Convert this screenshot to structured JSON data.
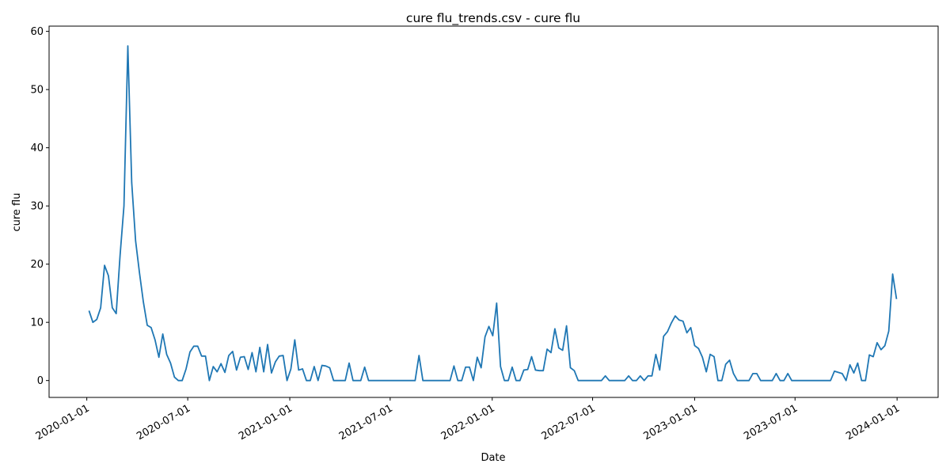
{
  "chart_data": {
    "type": "line",
    "title": "cure flu_trends.csv - cure flu",
    "x_label": "Date",
    "y_label": "cure flu",
    "color": "#1f77b4",
    "grid": false,
    "x": [
      "2020-01-05",
      "2020-01-12",
      "2020-01-19",
      "2020-01-26",
      "2020-02-02",
      "2020-02-09",
      "2020-02-16",
      "2020-02-23",
      "2020-03-01",
      "2020-03-08",
      "2020-03-15",
      "2020-03-22",
      "2020-03-29",
      "2020-04-05",
      "2020-04-12",
      "2020-04-19",
      "2020-04-26",
      "2020-05-03",
      "2020-05-10",
      "2020-05-17",
      "2020-05-24",
      "2020-05-31",
      "2020-06-07",
      "2020-06-14",
      "2020-06-21",
      "2020-06-28",
      "2020-07-05",
      "2020-07-12",
      "2020-07-19",
      "2020-07-26",
      "2020-08-02",
      "2020-08-09",
      "2020-08-16",
      "2020-08-23",
      "2020-08-30",
      "2020-09-06",
      "2020-09-13",
      "2020-09-20",
      "2020-09-27",
      "2020-10-04",
      "2020-10-11",
      "2020-10-18",
      "2020-10-25",
      "2020-11-01",
      "2020-11-08",
      "2020-11-15",
      "2020-11-22",
      "2020-11-29",
      "2020-12-06",
      "2020-12-13",
      "2020-12-20",
      "2020-12-27",
      "2021-01-03",
      "2021-01-10",
      "2021-01-17",
      "2021-01-24",
      "2021-01-31",
      "2021-02-07",
      "2021-02-14",
      "2021-02-21",
      "2021-02-28",
      "2021-03-07",
      "2021-03-14",
      "2021-03-21",
      "2021-03-28",
      "2021-04-04",
      "2021-04-11",
      "2021-04-18",
      "2021-04-25",
      "2021-05-02",
      "2021-05-09",
      "2021-05-16",
      "2021-05-23",
      "2021-05-30",
      "2021-06-06",
      "2021-06-13",
      "2021-06-20",
      "2021-06-27",
      "2021-07-04",
      "2021-07-11",
      "2021-07-18",
      "2021-07-25",
      "2021-08-01",
      "2021-08-08",
      "2021-08-15",
      "2021-08-22",
      "2021-08-29",
      "2021-09-05",
      "2021-09-12",
      "2021-09-19",
      "2021-09-26",
      "2021-10-03",
      "2021-10-10",
      "2021-10-17",
      "2021-10-24",
      "2021-10-31",
      "2021-11-07",
      "2021-11-14",
      "2021-11-21",
      "2021-11-28",
      "2021-12-05",
      "2021-12-12",
      "2021-12-19",
      "2021-12-26",
      "2022-01-02",
      "2022-01-09",
      "2022-01-16",
      "2022-01-23",
      "2022-01-30",
      "2022-02-06",
      "2022-02-13",
      "2022-02-20",
      "2022-02-27",
      "2022-03-06",
      "2022-03-13",
      "2022-03-20",
      "2022-03-27",
      "2022-04-03",
      "2022-04-10",
      "2022-04-17",
      "2022-04-24",
      "2022-05-01",
      "2022-05-08",
      "2022-05-15",
      "2022-05-22",
      "2022-05-29",
      "2022-06-05",
      "2022-06-12",
      "2022-06-19",
      "2022-06-26",
      "2022-07-03",
      "2022-07-10",
      "2022-07-17",
      "2022-07-24",
      "2022-07-31",
      "2022-08-07",
      "2022-08-14",
      "2022-08-21",
      "2022-08-28",
      "2022-09-04",
      "2022-09-11",
      "2022-09-18",
      "2022-09-25",
      "2022-10-02",
      "2022-10-09",
      "2022-10-16",
      "2022-10-23",
      "2022-10-30",
      "2022-11-06",
      "2022-11-13",
      "2022-11-20",
      "2022-11-27",
      "2022-12-04",
      "2022-12-11",
      "2022-12-18",
      "2022-12-25",
      "2023-01-01",
      "2023-01-08",
      "2023-01-15",
      "2023-01-22",
      "2023-01-29",
      "2023-02-05",
      "2023-02-12",
      "2023-02-19",
      "2023-02-26",
      "2023-03-05",
      "2023-03-12",
      "2023-03-19",
      "2023-03-26",
      "2023-04-02",
      "2023-04-09",
      "2023-04-16",
      "2023-04-23",
      "2023-04-30",
      "2023-05-07",
      "2023-05-14",
      "2023-05-21",
      "2023-05-28",
      "2023-06-04",
      "2023-06-11",
      "2023-06-18",
      "2023-06-25",
      "2023-07-02",
      "2023-07-09",
      "2023-07-16",
      "2023-07-23",
      "2023-07-30",
      "2023-08-06",
      "2023-08-13",
      "2023-08-20",
      "2023-08-27",
      "2023-09-03",
      "2023-09-10",
      "2023-09-17",
      "2023-09-24",
      "2023-10-01",
      "2023-10-08",
      "2023-10-15",
      "2023-10-22",
      "2023-10-29",
      "2023-11-05",
      "2023-11-12",
      "2023-11-19",
      "2023-11-26",
      "2023-12-03",
      "2023-12-10",
      "2023-12-17",
      "2023-12-24",
      "2023-12-31"
    ],
    "values": [
      12,
      10,
      10.5,
      12.5,
      19.8,
      18,
      12.5,
      11.5,
      21.5,
      30,
      57.5,
      34,
      24,
      18.5,
      13.5,
      9.5,
      9.1,
      7,
      4,
      8,
      4.5,
      3,
      0.6,
      0,
      0,
      2,
      4.9,
      5.9,
      5.9,
      4.2,
      4.2,
      0,
      2.4,
      1.5,
      2.9,
      1.4,
      4.3,
      5,
      1.8,
      4,
      4.1,
      1.9,
      4.8,
      1.5,
      5.7,
      1.5,
      6.2,
      1.3,
      3.2,
      4.2,
      4.3,
      0,
      2,
      7,
      1.8,
      2,
      0,
      0,
      2.4,
      0,
      2.6,
      2.5,
      2.2,
      0,
      0,
      0,
      0,
      3,
      0,
      0,
      0,
      2.3,
      0,
      0,
      0,
      0,
      0,
      0,
      0,
      0,
      0,
      0,
      0,
      0,
      0,
      4.3,
      0,
      0,
      0,
      0,
      0,
      0,
      0,
      0,
      2.5,
      0,
      0,
      2.3,
      2.3,
      0,
      4,
      2.2,
      7.5,
      9.3,
      7.7,
      13.3,
      2.4,
      0,
      0,
      2.3,
      0,
      0,
      1.8,
      1.9,
      4.1,
      1.8,
      1.7,
      1.7,
      5.4,
      4.8,
      8.9,
      5.6,
      5.2,
      9.4,
      2.2,
      1.7,
      0,
      0,
      0,
      0,
      0,
      0,
      0,
      0.8,
      0,
      0,
      0,
      0,
      0,
      0.8,
      0,
      0,
      0.8,
      0,
      0.8,
      0.8,
      4.5,
      1.8,
      7.6,
      8.4,
      9.9,
      11.1,
      10.4,
      10.2,
      8.2,
      9.1,
      6,
      5.5,
      4,
      1.5,
      4.5,
      4.1,
      0,
      0,
      2.8,
      3.5,
      1.2,
      0,
      0,
      0,
      0,
      1.2,
      1.2,
      0,
      0,
      0,
      0,
      1.2,
      0,
      0,
      1.2,
      0,
      0,
      0,
      0,
      0,
      0,
      0,
      0,
      0,
      0,
      0,
      1.6,
      1.4,
      1.2,
      0,
      2.7,
      1.3,
      3,
      0,
      0,
      4.4,
      4.1,
      6.5,
      5.3,
      6,
      8.5,
      18.3,
      14
    ],
    "xlim": [
      "2019-10-25",
      "2024-03-15"
    ],
    "xticks": [
      "2020-01-01",
      "2020-07-01",
      "2021-01-01",
      "2021-07-01",
      "2022-01-01",
      "2022-07-01",
      "2023-01-01",
      "2023-07-01",
      "2024-01-01"
    ],
    "ylim": [
      -2.9,
      60.9
    ],
    "yticks": [
      0,
      10,
      20,
      30,
      40,
      50,
      60
    ]
  }
}
